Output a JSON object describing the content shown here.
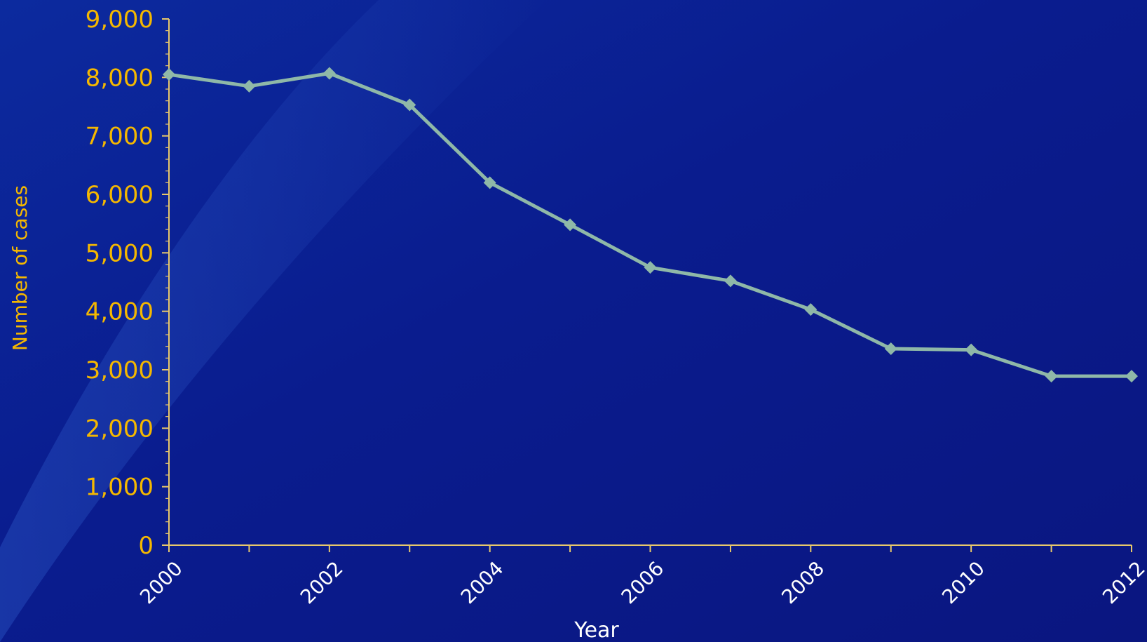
{
  "chart_data": {
    "type": "line",
    "xlabel": "Year",
    "ylabel": "Number of cases",
    "x": [
      2000,
      2001,
      2002,
      2003,
      2004,
      2005,
      2006,
      2007,
      2008,
      2009,
      2010,
      2011,
      2012
    ],
    "series": [
      {
        "values": [
          8050,
          7850,
          8070,
          7530,
          6200,
          5480,
          4750,
          4520,
          4030,
          3360,
          3340,
          2890,
          2890
        ],
        "color": "#8fb8a8",
        "marker": "diamond"
      }
    ],
    "ylim": [
      0,
      9000
    ],
    "yticks": [
      0,
      1000,
      2000,
      3000,
      4000,
      5000,
      6000,
      7000,
      8000,
      9000
    ],
    "ytick_labels": [
      "0",
      "1,000",
      "2,000",
      "3,000",
      "4,000",
      "5,000",
      "6,000",
      "7,000",
      "8,000",
      "9,000"
    ],
    "xticks_labeled": [
      2000,
      2002,
      2004,
      2006,
      2008,
      2010,
      2012
    ],
    "xtick_labels": [
      "2000",
      "2002",
      "2004",
      "2006",
      "2008",
      "2010",
      "2012"
    ],
    "grid": false,
    "legend": "none",
    "axis_color": "#e8c86a",
    "text_color_y": "#f5b800",
    "text_color_x": "#ffffff",
    "background": "#0a1a8c"
  }
}
